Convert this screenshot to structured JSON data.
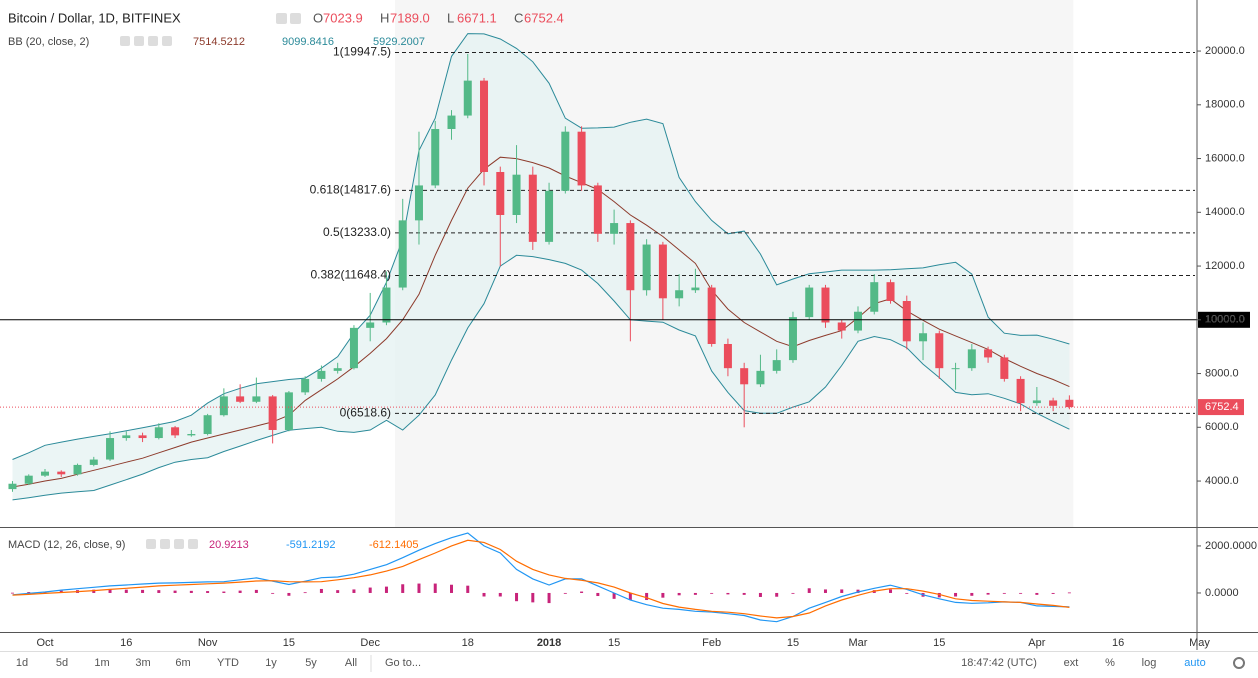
{
  "chart_data": [
    {
      "type": "candlestick",
      "title": "Bitcoin / Dollar, 1D, BITFINEX",
      "ohlc_legend": [
        {
          "key": "O",
          "text": "7023.9"
        },
        {
          "key": "H",
          "text": "7189.0"
        },
        {
          "key": "L",
          "text": "6671.1"
        },
        {
          "key": "C",
          "text": "6752.4"
        }
      ],
      "categories": [
        null,
        null,
        "Oct",
        null,
        null,
        null,
        null,
        "16",
        null,
        null,
        null,
        null,
        "Nov",
        null,
        null,
        null,
        null,
        "15",
        null,
        null,
        null,
        null,
        "Dec",
        null,
        null,
        null,
        null,
        null,
        "18",
        null,
        null,
        null,
        null,
        "2018",
        null,
        null,
        null,
        "15",
        null,
        null,
        null,
        null,
        null,
        "Feb",
        null,
        null,
        null,
        null,
        "15",
        null,
        null,
        null,
        "Mar",
        null,
        null,
        null,
        null,
        "15",
        null,
        null,
        null,
        null,
        null,
        "Apr",
        null,
        null,
        null,
        null,
        "16",
        null,
        null,
        null,
        null,
        "May"
      ],
      "open": [
        3700,
        3900,
        4200,
        4350,
        4250,
        4600,
        4800,
        5600,
        5700,
        5600,
        6000,
        5700,
        5750,
        6450,
        7150,
        6950,
        7150,
        5900,
        7300,
        7800,
        8100,
        8200,
        9700,
        9900,
        11200,
        13700,
        15000,
        17100,
        17600,
        18900,
        15500,
        13900,
        15400,
        12900,
        14800,
        17000,
        15000,
        13200,
        13600,
        11100,
        12800,
        10800,
        11100,
        11200,
        9100,
        8200,
        7600,
        8100,
        8500,
        10100,
        11200,
        9900,
        9600,
        10300,
        11400,
        10700,
        9200,
        9500,
        8200,
        8200,
        8900,
        8600,
        7800,
        6900,
        7000,
        7023.9,
        null,
        null,
        null,
        null,
        null,
        null,
        null,
        null
      ],
      "high": [
        4000,
        4250,
        4450,
        4400,
        4650,
        4900,
        5850,
        5850,
        5800,
        6150,
        6050,
        5900,
        6500,
        7450,
        7600,
        7850,
        7200,
        7350,
        7900,
        8300,
        8400,
        9800,
        11000,
        11800,
        14500,
        17000,
        17400,
        17800,
        19891,
        19000,
        15700,
        16500,
        15700,
        15100,
        17200,
        17200,
        15100,
        14100,
        13700,
        13000,
        12900,
        11700,
        11900,
        11300,
        9300,
        8400,
        8700,
        8900,
        10300,
        11300,
        11300,
        10000,
        10500,
        11700,
        11500,
        10900,
        9900,
        9600,
        8400,
        9100,
        9000,
        8700,
        7900,
        7500,
        7100,
        7189.0,
        null,
        null,
        null,
        null,
        null,
        null,
        null,
        null
      ],
      "low": [
        3600,
        3850,
        4150,
        4150,
        4200,
        4550,
        4750,
        5500,
        5450,
        5550,
        5600,
        5650,
        5700,
        6400,
        6900,
        6900,
        5400,
        5850,
        7200,
        7700,
        8000,
        8150,
        9200,
        9800,
        11100,
        12800,
        14900,
        16700,
        17500,
        15000,
        12000,
        13600,
        12600,
        12800,
        14700,
        14800,
        12900,
        12800,
        9200,
        10900,
        10000,
        10500,
        11000,
        9000,
        7900,
        6000,
        7500,
        8000,
        8400,
        10000,
        9700,
        9300,
        9500,
        10200,
        10600,
        8900,
        8500,
        7800,
        7400,
        8100,
        8400,
        7700,
        6600,
        6800,
        6600,
        6671.1,
        null,
        null,
        null,
        null,
        null,
        null,
        null,
        null
      ],
      "close": [
        3900,
        4200,
        4350,
        4250,
        4600,
        4800,
        5600,
        5700,
        5600,
        6000,
        5700,
        5750,
        6450,
        7150,
        6950,
        7150,
        5900,
        7300,
        7800,
        8100,
        8200,
        9700,
        9900,
        11200,
        13700,
        15000,
        17100,
        17600,
        18900,
        15500,
        13900,
        15400,
        12900,
        14800,
        17000,
        15000,
        13200,
        13600,
        11100,
        12800,
        10800,
        11100,
        11200,
        9100,
        8200,
        7600,
        8100,
        8500,
        10100,
        11200,
        9900,
        9600,
        10300,
        11400,
        10700,
        9200,
        9500,
        8200,
        8200,
        8900,
        8600,
        7800,
        6900,
        7000,
        6800,
        6752.4,
        null,
        null,
        null,
        null,
        null,
        null,
        null,
        null
      ],
      "up_color": "#53b987",
      "down_color": "#eb4d5c",
      "ylim": [
        2290,
        21900
      ],
      "yticks": [
        {
          "value": 4000,
          "label": "4000.0"
        },
        {
          "value": 6000,
          "label": "6000.0"
        },
        {
          "value": 8000,
          "label": "8000.0"
        },
        {
          "value": 10000,
          "label": "10000.0"
        },
        {
          "value": 12000,
          "label": "12000.0"
        },
        {
          "value": 14000,
          "label": "14000.0"
        },
        {
          "value": 16000,
          "label": "16000.0"
        },
        {
          "value": 18000,
          "label": "18000.0"
        },
        {
          "value": 20000,
          "label": "20000.0"
        }
      ],
      "grid": false,
      "bands": {
        "label": "BB (20, close, 2)",
        "fill": "#e4f1f1",
        "series": [
          {
            "color": "#8d3b2c",
            "last_label": "7514.5212",
            "values": [
              3780,
              3880,
              4000,
              4100,
              4250,
              4400,
              4550,
              4700,
              4850,
              5050,
              5250,
              5450,
              5600,
              5750,
              5900,
              6050,
              6200,
              6450,
              7000,
              7400,
              7800,
              8250,
              8750,
              9300,
              10000,
              10950,
              12400,
              13700,
              14900,
              15600,
              16050,
              16000,
              15850,
              15650,
              15350,
              15100,
              14850,
              14400,
              13900,
              13520,
              13100,
              12600,
              12100,
              11100,
              10400,
              9900,
              9550,
              9200,
              9000,
              9230,
              9420,
              9600,
              10080,
              10600,
              10780,
              10330,
              9980,
              9650,
              9400,
              9150,
              8900,
              8560,
              8270,
              8000,
              7780,
              7514.5212,
              null,
              null,
              null,
              null,
              null,
              null,
              null,
              null
            ]
          },
          {
            "color": "#2b8a99",
            "last_label": "9099.8416",
            "values": [
              4800,
              5050,
              5330,
              5450,
              5560,
              5660,
              5760,
              5870,
              5980,
              6100,
              6220,
              6450,
              6900,
              7250,
              7450,
              7620,
              7700,
              7780,
              7830,
              8200,
              8630,
              9500,
              10170,
              11400,
              13000,
              16300,
              17500,
              19800,
              20650,
              20640,
              20450,
              20100,
              19600,
              18800,
              17500,
              17130,
              17140,
              17170,
              17350,
              17470,
              17300,
              15300,
              14400,
              13700,
              13200,
              13300,
              12450,
              11300,
              11520,
              11710,
              11780,
              11850,
              11850,
              11850,
              11860,
              11900,
              11930,
              12050,
              12140,
              11700,
              10100,
              9500,
              9420,
              9430,
              9280,
              9099.8416,
              null,
              null,
              null,
              null,
              null,
              null,
              null,
              null
            ]
          },
          {
            "color": "#2b8a99",
            "last_label": "5929.2007",
            "values": [
              3300,
              3380,
              3470,
              3550,
              3600,
              3650,
              3850,
              4050,
              4260,
              4500,
              4700,
              4800,
              4870,
              5100,
              5300,
              5510,
              5700,
              5890,
              5950,
              6000,
              5850,
              5810,
              5900,
              6260,
              5900,
              6450,
              7200,
              8500,
              9700,
              10600,
              12000,
              12400,
              12350,
              12240,
              12100,
              11850,
              11350,
              10700,
              10000,
              9950,
              9910,
              9620,
              9400,
              8090,
              7300,
              6620,
              6520,
              6520,
              6750,
              6950,
              7500,
              8300,
              9200,
              9380,
              9260,
              8960,
              8350,
              7850,
              7300,
              7210,
              7250,
              7080,
              6870,
              6520,
              6220,
              5929.2007,
              null,
              null,
              null,
              null,
              null,
              null,
              null,
              null
            ]
          }
        ]
      },
      "fibonacci": [
        {
          "value": 19947.5,
          "label": "1(19947.5)"
        },
        {
          "value": 14817.6,
          "label": "0.618(14817.6)"
        },
        {
          "value": 13233.0,
          "label": "0.5(13233.0)"
        },
        {
          "value": 11648.4,
          "label": "0.382(11648.4)"
        },
        {
          "value": 6518.6,
          "label": "0(6518.6)"
        }
      ],
      "price_line": {
        "value": 10000,
        "label": "10000.0",
        "color": "#000000"
      },
      "last_price": {
        "value": 6752.4,
        "label": "6752.4",
        "color": "#eb4d5c"
      }
    },
    {
      "type": "macd",
      "label": "MACD (12, 26, close, 9)",
      "ylim": [
        -1660,
        2720
      ],
      "yticks": [
        {
          "value": 0,
          "label": "0.0000"
        },
        {
          "value": 2000,
          "label": "2000.0000"
        }
      ],
      "series": [
        {
          "style": "histogram",
          "color": "#c8237a",
          "last_label": "20.9213",
          "values": [
            10,
            40,
            60,
            100,
            120,
            140,
            150,
            140,
            130,
            120,
            100,
            90,
            80,
            60,
            100,
            130,
            -20,
            -120,
            30,
            170,
            120,
            150,
            230,
            270,
            370,
            400,
            400,
            350,
            310,
            -150,
            -150,
            -350,
            -400,
            -430,
            -20,
            60,
            -130,
            -250,
            -300,
            -300,
            -200,
            -100,
            -80,
            -30,
            -60,
            -80,
            -170,
            -160,
            0,
            200,
            150,
            150,
            140,
            120,
            150,
            -30,
            -160,
            -190,
            -150,
            -120,
            -70,
            0,
            0,
            -80,
            -40,
            20.9213,
            null,
            null,
            null,
            null,
            null,
            null,
            null,
            null
          ]
        },
        {
          "style": "line",
          "color": "#2196f3",
          "last_label": "-591.2192",
          "values": [
            -80,
            -20,
            40,
            120,
            180,
            240,
            300,
            340,
            380,
            420,
            430,
            450,
            470,
            480,
            560,
            640,
            500,
            360,
            500,
            650,
            680,
            800,
            1000,
            1200,
            1500,
            1820,
            2100,
            2350,
            2550,
            2000,
            1700,
            1000,
            600,
            340,
            600,
            600,
            300,
            0,
            -300,
            -500,
            -650,
            -700,
            -780,
            -810,
            -880,
            -960,
            -1150,
            -1220,
            -1000,
            -650,
            -400,
            -150,
            40,
            200,
            330,
            150,
            -80,
            -250,
            -400,
            -440,
            -420,
            -380,
            -400,
            -550,
            -570,
            -591.2192,
            null,
            null,
            null,
            null,
            null,
            null,
            null,
            null
          ]
        },
        {
          "style": "line",
          "color": "#ff6d00",
          "last_label": "-612.1405",
          "values": [
            -90,
            -60,
            -20,
            20,
            60,
            100,
            150,
            200,
            250,
            300,
            330,
            360,
            390,
            420,
            460,
            510,
            520,
            480,
            470,
            480,
            560,
            650,
            770,
            930,
            1130,
            1420,
            1700,
            2000,
            2240,
            2150,
            1850,
            1350,
            1000,
            770,
            620,
            540,
            430,
            250,
            0,
            -200,
            -450,
            -600,
            -700,
            -780,
            -820,
            -880,
            -980,
            -1060,
            -1000,
            -850,
            -550,
            -300,
            -100,
            80,
            180,
            180,
            80,
            -60,
            -250,
            -320,
            -350,
            -380,
            -400,
            -470,
            -530,
            -612.1405,
            null,
            null,
            null,
            null,
            null,
            null,
            null,
            null
          ]
        }
      ]
    }
  ],
  "toolbar": {
    "ranges": [
      "1d",
      "5d",
      "1m",
      "3m",
      "6m",
      "YTD",
      "1y",
      "5y",
      "All"
    ],
    "goto": "Go to...",
    "clock": "18:47:42 (UTC)",
    "options": [
      "ext",
      "%",
      "log",
      "auto"
    ]
  }
}
